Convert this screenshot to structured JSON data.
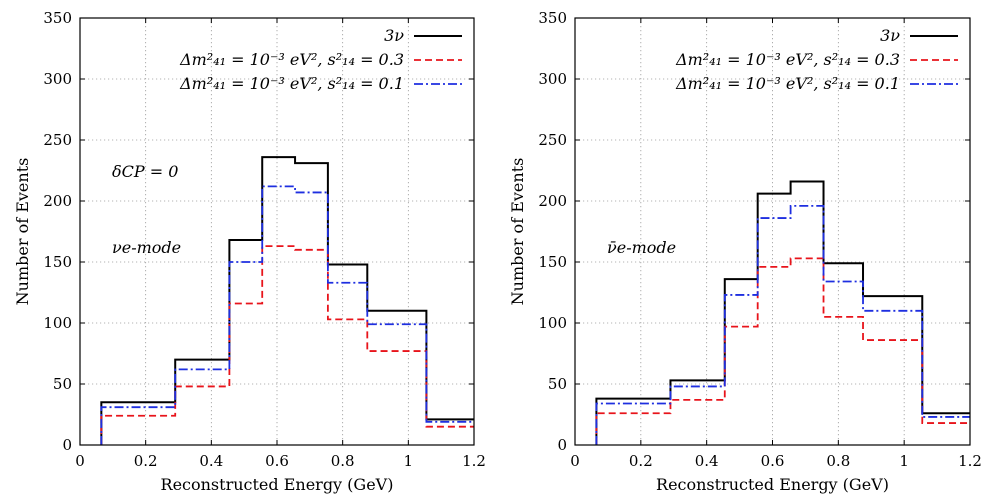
{
  "chart_data": [
    {
      "type": "line",
      "step": true,
      "xlabel": "Reconstructed Energy (GeV)",
      "ylabel": "Number of Events",
      "xlim": [
        0,
        1.2
      ],
      "ylim": [
        0,
        350
      ],
      "xticks": [
        "0",
        "0.2",
        "0.4",
        "0.6",
        "0.8",
        "1",
        "1.2"
      ],
      "yticks": [
        "0",
        "50",
        "100",
        "150",
        "200",
        "250",
        "300",
        "350"
      ],
      "grid": true,
      "legend_position": "top-right",
      "bin_edges": [
        0.065,
        0.29,
        0.455,
        0.555,
        0.655,
        0.755,
        0.875,
        1.055,
        1.2
      ],
      "series": [
        {
          "name": "3ν",
          "color": "#000000",
          "dash": "solid",
          "values": [
            35,
            70,
            168,
            236,
            231,
            148,
            110,
            21
          ]
        },
        {
          "name": "Δm²₄₁ = 10⁻³ eV², s²₁₄ = 0.3",
          "color": "#e8141b",
          "dash": "dashed",
          "values": [
            24,
            48,
            116,
            163,
            160,
            103,
            77,
            15
          ]
        },
        {
          "name": "Δm²₄₁ = 10⁻³ eV², s²₁₄ = 0.1",
          "color": "#1e2fe0",
          "dash": "dashdot",
          "values": [
            31,
            62,
            150,
            212,
            207,
            133,
            99,
            19
          ]
        }
      ],
      "annotations": [
        "δCP = 0",
        "νe-mode"
      ]
    },
    {
      "type": "line",
      "step": true,
      "xlabel": "Reconstructed Energy (GeV)",
      "ylabel": "Number of Events",
      "xlim": [
        0,
        1.2
      ],
      "ylim": [
        0,
        350
      ],
      "xticks": [
        "0",
        "0.2",
        "0.4",
        "0.6",
        "0.8",
        "1",
        "1.2"
      ],
      "yticks": [
        "0",
        "50",
        "100",
        "150",
        "200",
        "250",
        "300",
        "350"
      ],
      "grid": true,
      "legend_position": "top-right",
      "bin_edges": [
        0.065,
        0.29,
        0.455,
        0.555,
        0.655,
        0.755,
        0.875,
        1.055,
        1.2
      ],
      "series": [
        {
          "name": "3ν",
          "color": "#000000",
          "dash": "solid",
          "values": [
            38,
            53,
            136,
            206,
            216,
            149,
            122,
            26
          ]
        },
        {
          "name": "Δm²₄₁ = 10⁻³ eV², s²₁₄ = 0.3",
          "color": "#e8141b",
          "dash": "dashed",
          "values": [
            26,
            37,
            97,
            146,
            153,
            105,
            86,
            18
          ]
        },
        {
          "name": "Δm²₄₁ = 10⁻³ eV², s²₁₄ = 0.1",
          "color": "#1e2fe0",
          "dash": "dashdot",
          "values": [
            34,
            48,
            123,
            186,
            196,
            134,
            110,
            23
          ]
        }
      ],
      "annotations": [
        "ν̄e-mode"
      ]
    }
  ]
}
